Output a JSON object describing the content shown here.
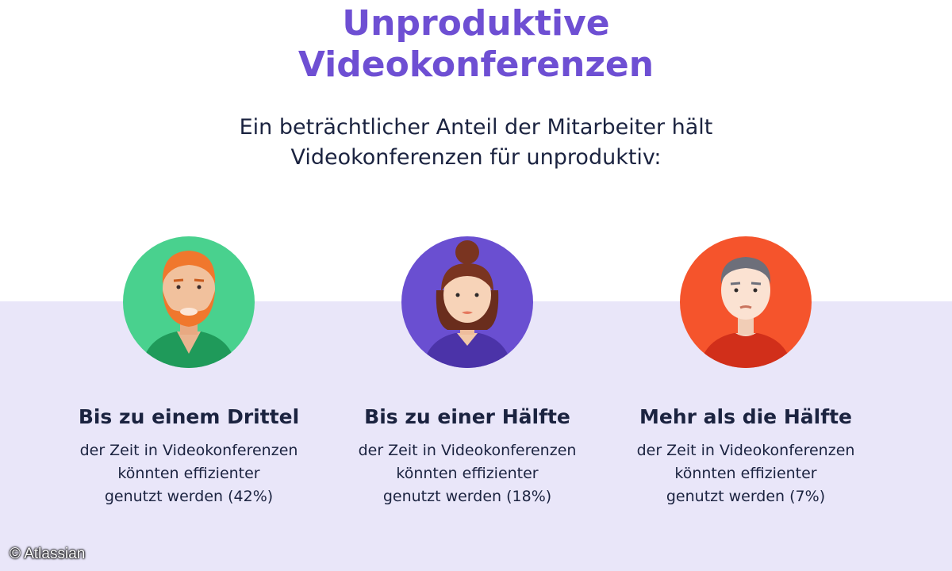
{
  "title": {
    "line1": "Unproduktive",
    "line2": "Videokonferenzen"
  },
  "subtitle": {
    "line1": "Ein beträchtlicher Anteil der Mitarbeiter hält",
    "line2": "Videokonferenzen für unproduktiv:"
  },
  "columns": [
    {
      "heading": "Bis zu einem Drittel",
      "line1": "der Zeit in Videokonferenzen",
      "line2": "könnten effizienter",
      "line3": "genutzt werden (42%)",
      "avatar_icon": "bearded-man-avatar-icon",
      "circle_color": "#49d18e"
    },
    {
      "heading": "Bis zu einer Hälfte",
      "line1": "der Zeit in Videokonferenzen",
      "line2": "könnten effizienter",
      "line3": "genutzt werden  (18%)",
      "avatar_icon": "woman-avatar-icon",
      "circle_color": "#6a4fd1"
    },
    {
      "heading": "Mehr als die Hälfte",
      "line1": "der Zeit in Videokonferenzen",
      "line2": "könnten effizienter",
      "line3": "genutzt werden  (7%)",
      "avatar_icon": "man-avatar-icon",
      "circle_color": "#f5542c"
    }
  ],
  "credit": "© Atlassian",
  "colors": {
    "title": "#6e4fd3",
    "text": "#1b2340",
    "band": "#e9e6f9"
  }
}
